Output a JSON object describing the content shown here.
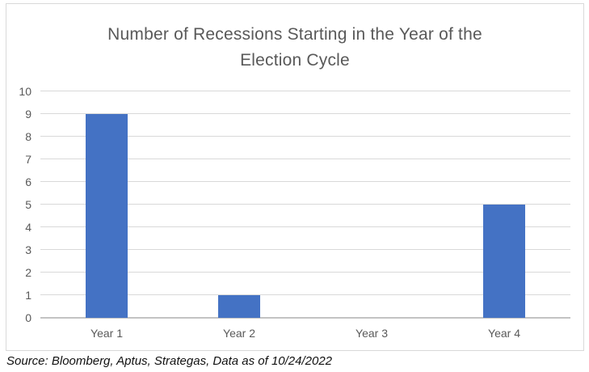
{
  "chart_data": {
    "type": "bar",
    "title": "Number of Recessions Starting in the Year of the Election Cycle",
    "title_lines": [
      "Number of Recessions Starting in the Year of the",
      "Election Cycle"
    ],
    "categories": [
      "Year 1",
      "Year 2",
      "Year 3",
      "Year 4"
    ],
    "values": [
      9,
      1,
      0,
      5
    ],
    "xlabel": "",
    "ylabel": "",
    "ylim": [
      0,
      10
    ],
    "ytick_step": 1,
    "grid": "horizontal",
    "legend_position": "none",
    "bar_color": "#4472c4",
    "gridline_color": "#d9d9d9",
    "axis_line_color": "#c3c3c3",
    "text_color": "#595959"
  },
  "footer": {
    "source_note": "Source: Bloomberg, Aptus, Strategas, Data as of 10/24/2022"
  }
}
